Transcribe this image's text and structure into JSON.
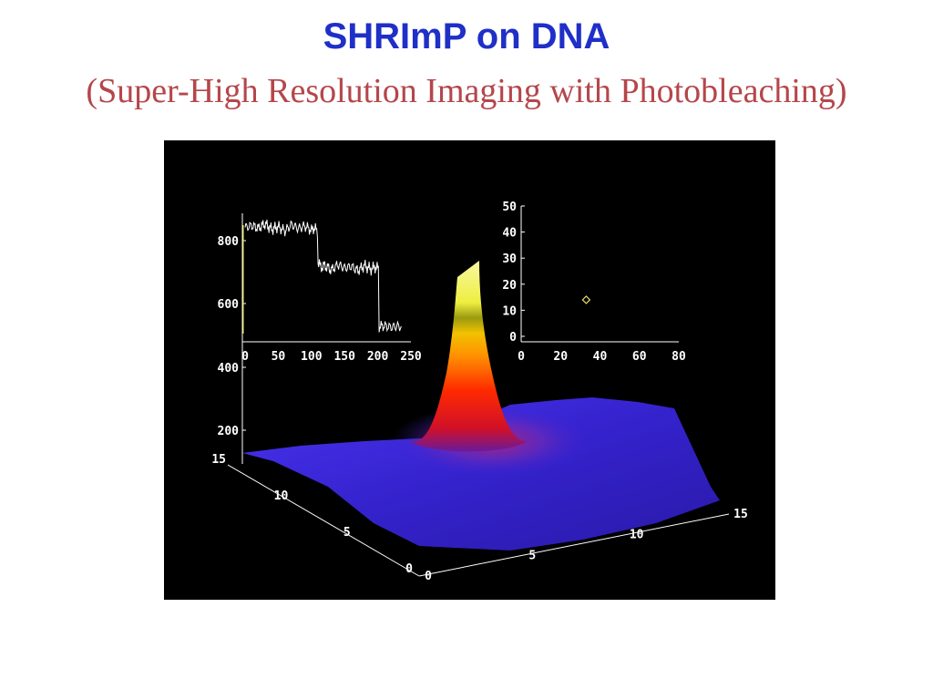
{
  "slide": {
    "title": "SHRImP on DNA",
    "subtitle": "(Super-High Resolution Imaging with Photobleaching)"
  },
  "colors": {
    "title": "#1f2fc8",
    "subtitle": "#b5464b",
    "figure_background": "#000000",
    "axes": "#ffffff",
    "surface_base": "#3a23d8",
    "peak_low": "#e01020",
    "peak_mid": "#ff8a00",
    "peak_high": "#f5f56a",
    "marker": "#e8e06a"
  },
  "chart_data": [
    {
      "type": "line",
      "name": "intensity-trace-inset",
      "xlim": [
        0,
        250
      ],
      "ylim": [
        560,
        900
      ],
      "x_ticks": [
        "0",
        "50",
        "100",
        "150",
        "200",
        "250"
      ],
      "points": [
        [
          0,
          860
        ],
        [
          10,
          865
        ],
        [
          20,
          858
        ],
        [
          30,
          870
        ],
        [
          40,
          855
        ],
        [
          50,
          862
        ],
        [
          60,
          850
        ],
        [
          70,
          868
        ],
        [
          80,
          857
        ],
        [
          90,
          864
        ],
        [
          100,
          852
        ],
        [
          105,
          860
        ],
        [
          108,
          848
        ],
        [
          110,
          760
        ],
        [
          115,
          748
        ],
        [
          120,
          752
        ],
        [
          130,
          740
        ],
        [
          140,
          755
        ],
        [
          150,
          745
        ],
        [
          160,
          750
        ],
        [
          170,
          738
        ],
        [
          180,
          752
        ],
        [
          190,
          742
        ],
        [
          195,
          748
        ],
        [
          200,
          745
        ],
        [
          202,
          580
        ],
        [
          210,
          582
        ],
        [
          220,
          578
        ],
        [
          230,
          581
        ],
        [
          236,
          579
        ]
      ]
    },
    {
      "type": "scatter",
      "name": "step-histogram-inset",
      "xlim": [
        0,
        80
      ],
      "ylim": [
        0,
        50
      ],
      "x_ticks": [
        "0",
        "20",
        "40",
        "60",
        "80"
      ],
      "y_ticks": [
        "0",
        "10",
        "20",
        "30",
        "40",
        "50"
      ],
      "points": [
        [
          33,
          14
        ]
      ]
    },
    {
      "type": "surface",
      "name": "psf-surface",
      "z_ticks": [
        "200",
        "400",
        "600",
        "800"
      ],
      "x_ticks": [
        "0",
        "5",
        "10",
        "15"
      ],
      "y_ticks": [
        "0",
        "5",
        "10",
        "15"
      ]
    }
  ]
}
